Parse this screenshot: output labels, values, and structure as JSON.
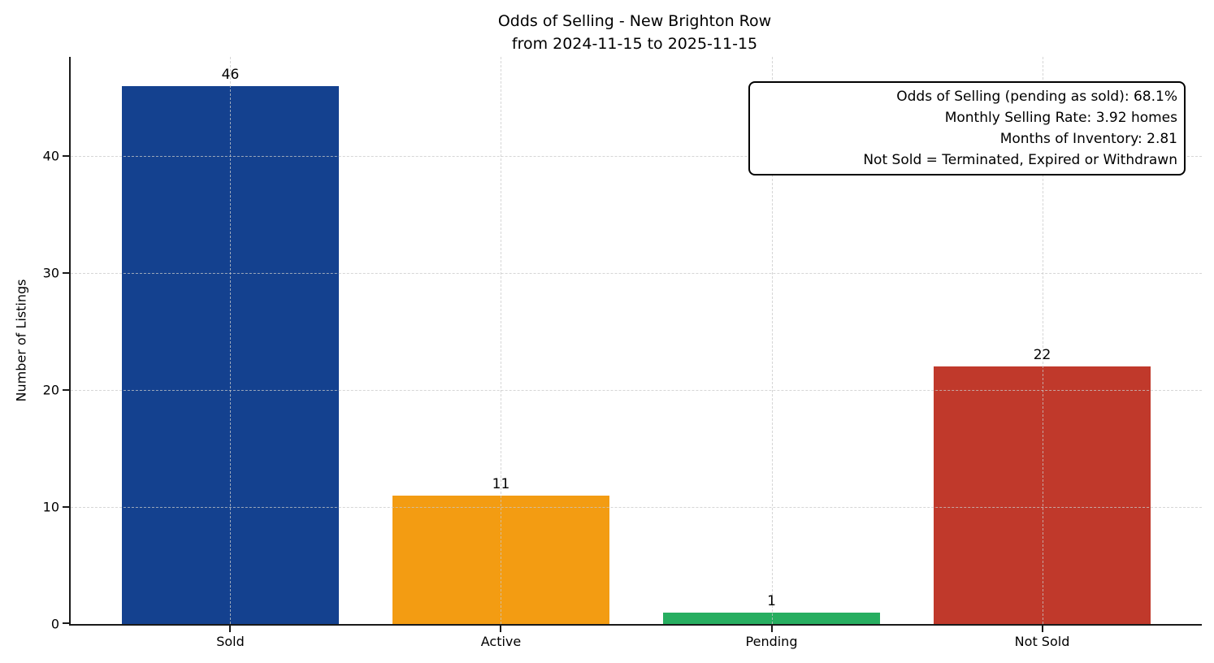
{
  "chart_data": {
    "type": "bar",
    "title": "Odds of Selling - New Brighton Row",
    "subtitle": "from 2024-11-15 to 2025-11-15",
    "xlabel": "",
    "ylabel": "Number of Listings",
    "categories": [
      "Sold",
      "Active",
      "Pending",
      "Not Sold"
    ],
    "values": [
      46,
      11,
      1,
      22
    ],
    "bar_colors": [
      "#14418f",
      "#f39c12",
      "#27ae60",
      "#c0392b"
    ],
    "yticks": [
      0,
      10,
      20,
      30,
      40
    ],
    "ylim": [
      0,
      48.5
    ],
    "xlim": [
      -0.59,
      3.59
    ],
    "bar_width_units": 0.8,
    "grid": "dashed light-gray horizontal at yticks and vertical at category centers",
    "legend_position": "none",
    "annotation_box": {
      "lines": [
        "Odds of Selling (pending as sold): 68.1%",
        "Monthly Selling Rate: 3.92 homes",
        "Months of Inventory: 2.81",
        "Not Sold = Terminated, Expired or Withdrawn"
      ]
    }
  }
}
